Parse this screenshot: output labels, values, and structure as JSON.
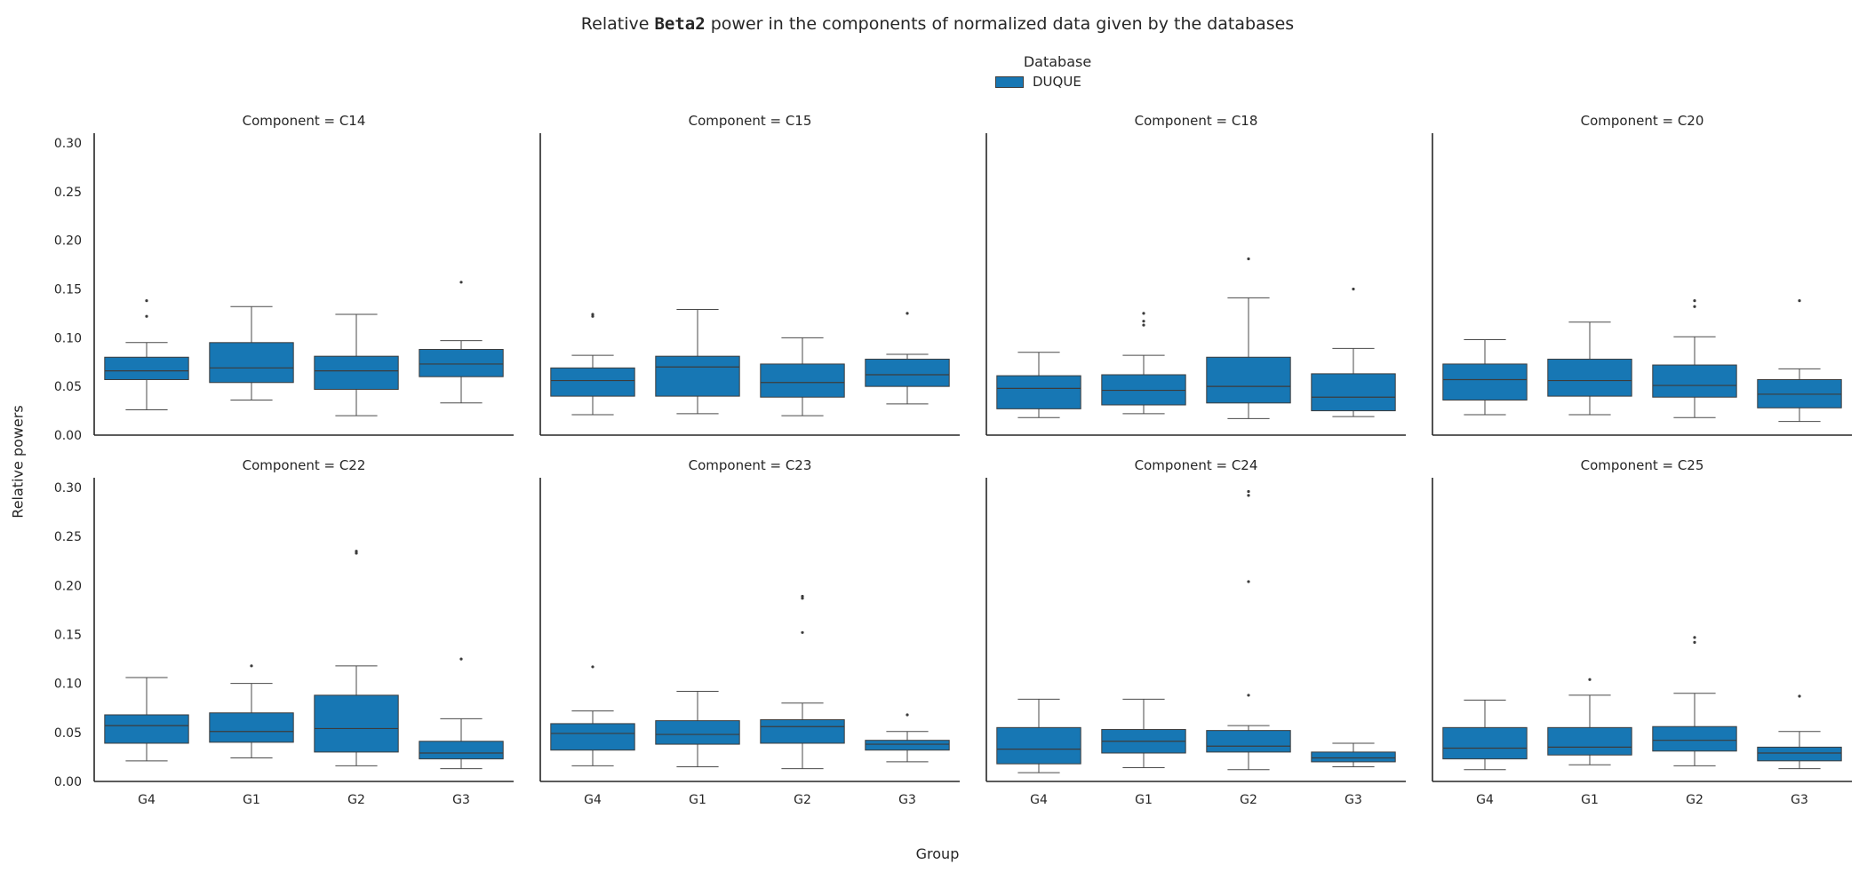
{
  "title_prefix": "Relative",
  "title_bold": "Beta2",
  "title_suffix": "power in the components of normalized data given by the databases",
  "legend": {
    "title": "Database",
    "entries": [
      {
        "label": "DUQUE",
        "color": "#1777b4"
      }
    ]
  },
  "ylabel": "Relative powers",
  "xlabel": "Group",
  "chart_data": {
    "type": "box",
    "categories": [
      "G4",
      "G1",
      "G2",
      "G3"
    ],
    "ylim": [
      0,
      0.31
    ],
    "yticks": [
      "0.00",
      "0.05",
      "0.10",
      "0.15",
      "0.20",
      "0.25",
      "0.30"
    ],
    "grid": false,
    "legend_position": "top-center",
    "facet_label_prefix": "Component = ",
    "box_color": "#1777b4",
    "panels": [
      {
        "component": "C14",
        "boxes": [
          {
            "group": "G4",
            "whislo": 0.026,
            "q1": 0.057,
            "med": 0.066,
            "q3": 0.08,
            "whishi": 0.095,
            "fliers": [
              0.122,
              0.138
            ]
          },
          {
            "group": "G1",
            "whislo": 0.036,
            "q1": 0.054,
            "med": 0.069,
            "q3": 0.095,
            "whishi": 0.132,
            "fliers": []
          },
          {
            "group": "G2",
            "whislo": 0.02,
            "q1": 0.047,
            "med": 0.066,
            "q3": 0.081,
            "whishi": 0.124,
            "fliers": []
          },
          {
            "group": "G3",
            "whislo": 0.033,
            "q1": 0.06,
            "med": 0.073,
            "q3": 0.088,
            "whishi": 0.097,
            "fliers": [
              0.157
            ]
          }
        ]
      },
      {
        "component": "C15",
        "boxes": [
          {
            "group": "G4",
            "whislo": 0.021,
            "q1": 0.04,
            "med": 0.056,
            "q3": 0.069,
            "whishi": 0.082,
            "fliers": [
              0.122,
              0.124
            ]
          },
          {
            "group": "G1",
            "whislo": 0.022,
            "q1": 0.04,
            "med": 0.07,
            "q3": 0.081,
            "whishi": 0.129,
            "fliers": []
          },
          {
            "group": "G2",
            "whislo": 0.02,
            "q1": 0.039,
            "med": 0.054,
            "q3": 0.073,
            "whishi": 0.1,
            "fliers": []
          },
          {
            "group": "G3",
            "whislo": 0.032,
            "q1": 0.05,
            "med": 0.062,
            "q3": 0.078,
            "whishi": 0.083,
            "fliers": [
              0.125
            ]
          }
        ]
      },
      {
        "component": "C18",
        "boxes": [
          {
            "group": "G4",
            "whislo": 0.018,
            "q1": 0.027,
            "med": 0.048,
            "q3": 0.061,
            "whishi": 0.085,
            "fliers": []
          },
          {
            "group": "G1",
            "whislo": 0.022,
            "q1": 0.031,
            "med": 0.046,
            "q3": 0.062,
            "whishi": 0.082,
            "fliers": [
              0.113,
              0.117,
              0.125
            ]
          },
          {
            "group": "G2",
            "whislo": 0.017,
            "q1": 0.033,
            "med": 0.05,
            "q3": 0.08,
            "whishi": 0.141,
            "fliers": [
              0.181
            ]
          },
          {
            "group": "G3",
            "whislo": 0.019,
            "q1": 0.025,
            "med": 0.039,
            "q3": 0.063,
            "whishi": 0.089,
            "fliers": [
              0.15
            ]
          }
        ]
      },
      {
        "component": "C20",
        "boxes": [
          {
            "group": "G4",
            "whislo": 0.021,
            "q1": 0.036,
            "med": 0.057,
            "q3": 0.073,
            "whishi": 0.098,
            "fliers": []
          },
          {
            "group": "G1",
            "whislo": 0.021,
            "q1": 0.04,
            "med": 0.056,
            "q3": 0.078,
            "whishi": 0.116,
            "fliers": []
          },
          {
            "group": "G2",
            "whislo": 0.018,
            "q1": 0.039,
            "med": 0.051,
            "q3": 0.072,
            "whishi": 0.101,
            "fliers": [
              0.132,
              0.138
            ]
          },
          {
            "group": "G3",
            "whislo": 0.014,
            "q1": 0.028,
            "med": 0.042,
            "q3": 0.057,
            "whishi": 0.068,
            "fliers": [
              0.138
            ]
          }
        ]
      },
      {
        "component": "C22",
        "boxes": [
          {
            "group": "G4",
            "whislo": 0.021,
            "q1": 0.039,
            "med": 0.057,
            "q3": 0.068,
            "whishi": 0.106,
            "fliers": []
          },
          {
            "group": "G1",
            "whislo": 0.024,
            "q1": 0.04,
            "med": 0.051,
            "q3": 0.07,
            "whishi": 0.1,
            "fliers": [
              0.118
            ]
          },
          {
            "group": "G2",
            "whislo": 0.016,
            "q1": 0.03,
            "med": 0.054,
            "q3": 0.088,
            "whishi": 0.118,
            "fliers": [
              0.233,
              0.235
            ]
          },
          {
            "group": "G3",
            "whislo": 0.013,
            "q1": 0.023,
            "med": 0.029,
            "q3": 0.041,
            "whishi": 0.064,
            "fliers": [
              0.125
            ]
          }
        ]
      },
      {
        "component": "C23",
        "boxes": [
          {
            "group": "G4",
            "whislo": 0.016,
            "q1": 0.032,
            "med": 0.049,
            "q3": 0.059,
            "whishi": 0.072,
            "fliers": [
              0.117
            ]
          },
          {
            "group": "G1",
            "whislo": 0.015,
            "q1": 0.038,
            "med": 0.048,
            "q3": 0.062,
            "whishi": 0.092,
            "fliers": []
          },
          {
            "group": "G2",
            "whislo": 0.013,
            "q1": 0.039,
            "med": 0.056,
            "q3": 0.063,
            "whishi": 0.08,
            "fliers": [
              0.152,
              0.187,
              0.189
            ]
          },
          {
            "group": "G3",
            "whislo": 0.02,
            "q1": 0.032,
            "med": 0.038,
            "q3": 0.042,
            "whishi": 0.051,
            "fliers": [
              0.068
            ]
          }
        ]
      },
      {
        "component": "C24",
        "boxes": [
          {
            "group": "G4",
            "whislo": 0.009,
            "q1": 0.018,
            "med": 0.033,
            "q3": 0.055,
            "whishi": 0.084,
            "fliers": []
          },
          {
            "group": "G1",
            "whislo": 0.014,
            "q1": 0.029,
            "med": 0.041,
            "q3": 0.053,
            "whishi": 0.084,
            "fliers": []
          },
          {
            "group": "G2",
            "whislo": 0.012,
            "q1": 0.03,
            "med": 0.036,
            "q3": 0.052,
            "whishi": 0.057,
            "fliers": [
              0.088,
              0.204,
              0.292,
              0.296
            ]
          },
          {
            "group": "G3",
            "whislo": 0.015,
            "q1": 0.02,
            "med": 0.024,
            "q3": 0.03,
            "whishi": 0.039,
            "fliers": []
          }
        ]
      },
      {
        "component": "C25",
        "boxes": [
          {
            "group": "G4",
            "whislo": 0.012,
            "q1": 0.023,
            "med": 0.034,
            "q3": 0.055,
            "whishi": 0.083,
            "fliers": []
          },
          {
            "group": "G1",
            "whislo": 0.017,
            "q1": 0.027,
            "med": 0.035,
            "q3": 0.055,
            "whishi": 0.088,
            "fliers": [
              0.104
            ]
          },
          {
            "group": "G2",
            "whislo": 0.016,
            "q1": 0.031,
            "med": 0.042,
            "q3": 0.056,
            "whishi": 0.09,
            "fliers": [
              0.142,
              0.147
            ]
          },
          {
            "group": "G3",
            "whislo": 0.013,
            "q1": 0.021,
            "med": 0.029,
            "q3": 0.035,
            "whishi": 0.051,
            "fliers": [
              0.087
            ]
          }
        ]
      }
    ]
  }
}
